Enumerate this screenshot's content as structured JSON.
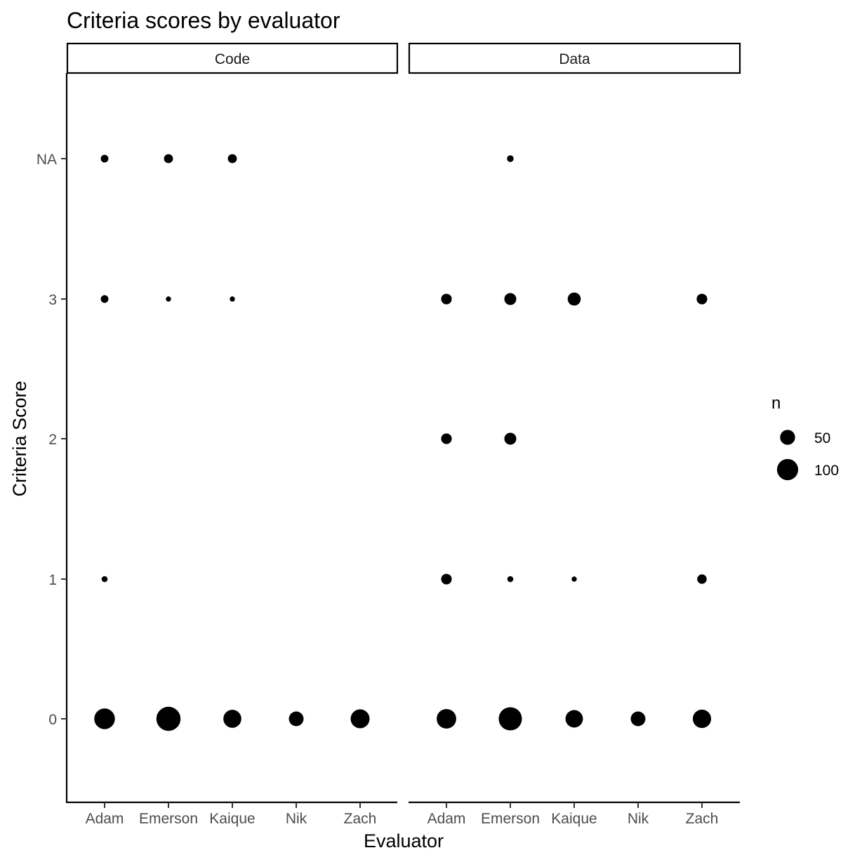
{
  "chart_data": {
    "type": "scatter",
    "title": "Criteria scores by evaluator",
    "xlabel": "Evaluator",
    "ylabel": "Criteria Score",
    "facets": [
      "Code",
      "Data"
    ],
    "categories": [
      "Adam",
      "Emerson",
      "Kaique",
      "Nik",
      "Zach"
    ],
    "y_levels": [
      "0",
      "1",
      "2",
      "3",
      "NA"
    ],
    "size_legend": {
      "title": "n",
      "breaks": [
        50,
        100
      ]
    },
    "grid": false,
    "legend_position": "right",
    "points": [
      {
        "facet": "Code",
        "evaluator": "Adam",
        "score": "0",
        "n": 95
      },
      {
        "facet": "Code",
        "evaluator": "Adam",
        "score": "1",
        "n": 8
      },
      {
        "facet": "Code",
        "evaluator": "Adam",
        "score": "3",
        "n": 13
      },
      {
        "facet": "Code",
        "evaluator": "Adam",
        "score": "NA",
        "n": 13
      },
      {
        "facet": "Code",
        "evaluator": "Emerson",
        "score": "0",
        "n": 130
      },
      {
        "facet": "Code",
        "evaluator": "Emerson",
        "score": "3",
        "n": 6
      },
      {
        "facet": "Code",
        "evaluator": "Emerson",
        "score": "NA",
        "n": 18
      },
      {
        "facet": "Code",
        "evaluator": "Kaique",
        "score": "0",
        "n": 72
      },
      {
        "facet": "Code",
        "evaluator": "Kaique",
        "score": "3",
        "n": 6
      },
      {
        "facet": "Code",
        "evaluator": "Kaique",
        "score": "NA",
        "n": 18
      },
      {
        "facet": "Code",
        "evaluator": "Nik",
        "score": "0",
        "n": 48
      },
      {
        "facet": "Code",
        "evaluator": "Zach",
        "score": "0",
        "n": 80
      },
      {
        "facet": "Data",
        "evaluator": "Adam",
        "score": "0",
        "n": 85
      },
      {
        "facet": "Data",
        "evaluator": "Adam",
        "score": "1",
        "n": 25
      },
      {
        "facet": "Data",
        "evaluator": "Adam",
        "score": "2",
        "n": 25
      },
      {
        "facet": "Data",
        "evaluator": "Adam",
        "score": "3",
        "n": 25
      },
      {
        "facet": "Data",
        "evaluator": "Emerson",
        "score": "0",
        "n": 120
      },
      {
        "facet": "Data",
        "evaluator": "Emerson",
        "score": "1",
        "n": 8
      },
      {
        "facet": "Data",
        "evaluator": "Emerson",
        "score": "2",
        "n": 32
      },
      {
        "facet": "Data",
        "evaluator": "Emerson",
        "score": "3",
        "n": 32
      },
      {
        "facet": "Data",
        "evaluator": "Emerson",
        "score": "NA",
        "n": 10
      },
      {
        "facet": "Data",
        "evaluator": "Kaique",
        "score": "0",
        "n": 68
      },
      {
        "facet": "Data",
        "evaluator": "Kaique",
        "score": "1",
        "n": 6
      },
      {
        "facet": "Data",
        "evaluator": "Kaique",
        "score": "3",
        "n": 38
      },
      {
        "facet": "Data",
        "evaluator": "Nik",
        "score": "0",
        "n": 48
      },
      {
        "facet": "Data",
        "evaluator": "Zach",
        "score": "0",
        "n": 75
      },
      {
        "facet": "Data",
        "evaluator": "Zach",
        "score": "1",
        "n": 20
      },
      {
        "facet": "Data",
        "evaluator": "Zach",
        "score": "3",
        "n": 25
      }
    ]
  }
}
